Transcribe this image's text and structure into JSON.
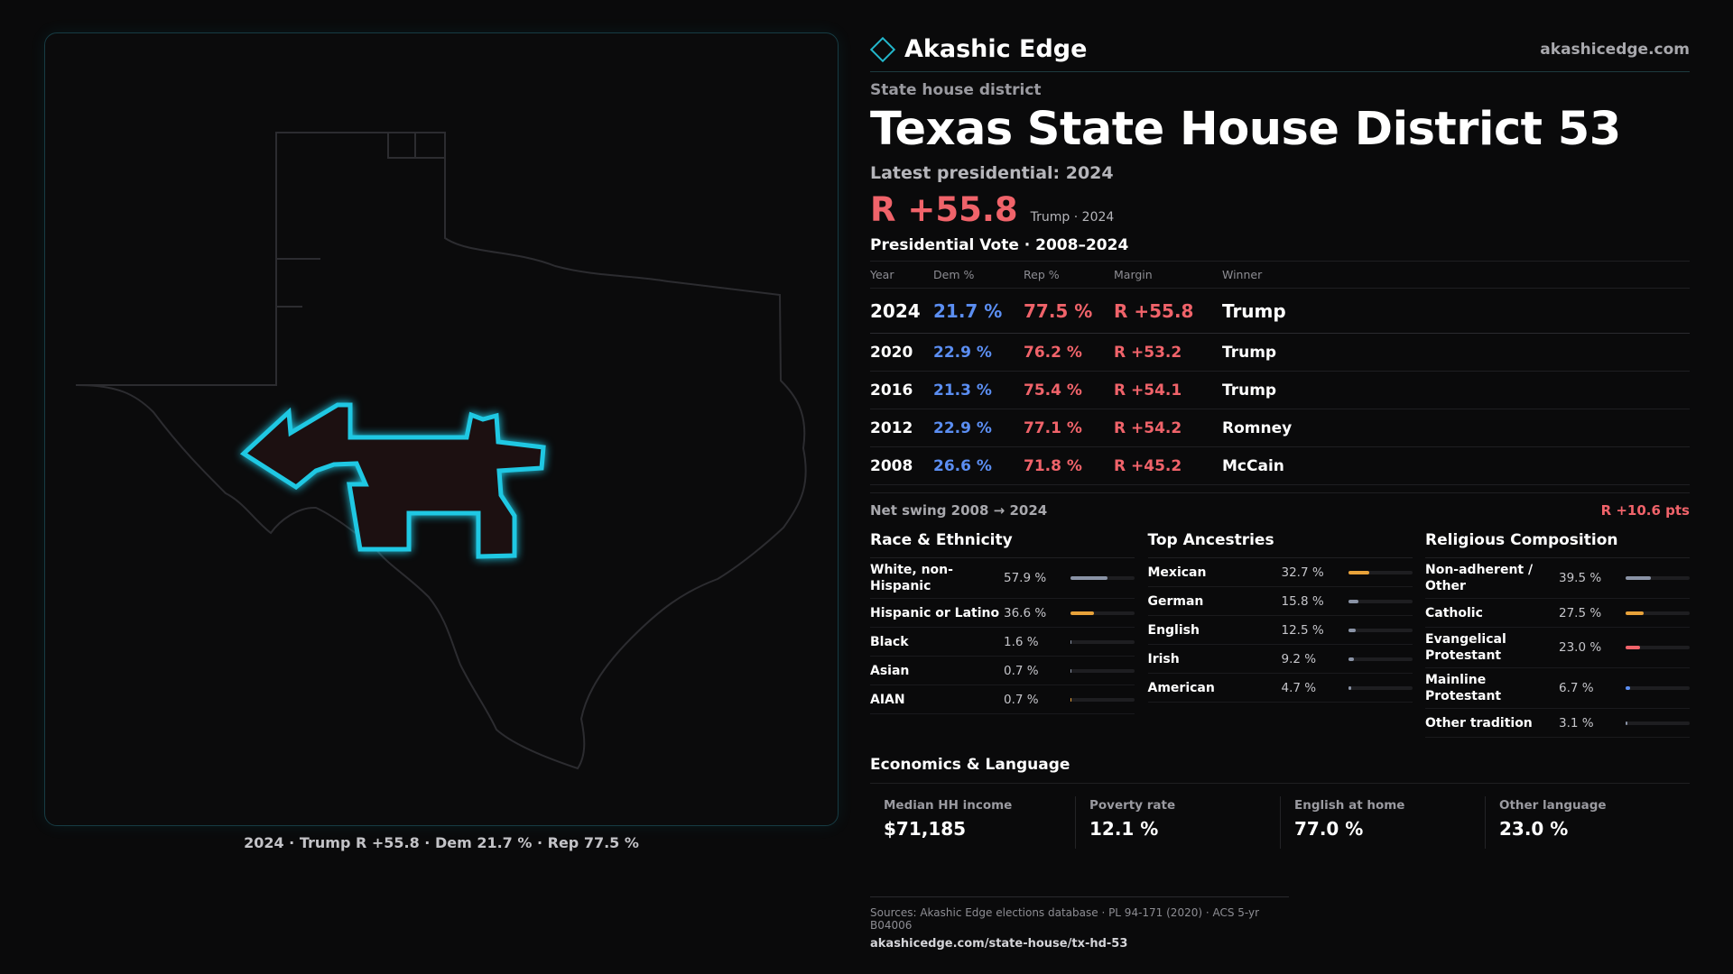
{
  "brand": {
    "name": "Akashic Edge",
    "url": "akashicedge.com",
    "accent": "#23b7cc"
  },
  "district": {
    "kind": "State house district",
    "state": "Texas",
    "name": "State House District 53",
    "latest_label": "Latest presidential: 2024",
    "margin": "R +55.8",
    "margin_sub": "Trump · 2024"
  },
  "votes": {
    "heading": "Presidential Vote · 2008–2024",
    "columns": [
      "Year",
      "Dem %",
      "Rep %",
      "Margin",
      "Winner"
    ],
    "rows": [
      {
        "year": "2024",
        "dem": "21.7 %",
        "rep": "77.5 %",
        "margin": "R +55.8",
        "winner": "Trump"
      },
      {
        "year": "2020",
        "dem": "22.9 %",
        "rep": "76.2 %",
        "margin": "R +53.2",
        "winner": "Trump"
      },
      {
        "year": "2016",
        "dem": "21.3 %",
        "rep": "75.4 %",
        "margin": "R +54.1",
        "winner": "Trump"
      },
      {
        "year": "2012",
        "dem": "22.9 %",
        "rep": "77.1 %",
        "margin": "R +54.2",
        "winner": "Romney"
      },
      {
        "year": "2008",
        "dem": "26.6 %",
        "rep": "71.8 %",
        "margin": "R +45.2",
        "winner": "McCain"
      }
    ],
    "swing_label": "Net swing 2008 → 2024",
    "swing_value": "R +10.6 pts"
  },
  "race": {
    "heading": "Race & Ethnicity",
    "items": [
      {
        "label": "White, non-Hispanic",
        "value": "57.9 %",
        "share": 0.579,
        "color": "#8a93a6"
      },
      {
        "label": "Hispanic or Latino",
        "value": "36.6 %",
        "share": 0.366,
        "color": "#e8a23a"
      },
      {
        "label": "Black",
        "value": "1.6 %",
        "share": 0.016,
        "color": "#8a93a6"
      },
      {
        "label": "Asian",
        "value": "0.7 %",
        "share": 0.007,
        "color": "#8a93a6"
      },
      {
        "label": "AIAN",
        "value": "0.7 %",
        "share": 0.007,
        "color": "#e8a23a"
      }
    ]
  },
  "ancestry": {
    "heading": "Top Ancestries",
    "items": [
      {
        "label": "Mexican",
        "value": "32.7 %",
        "share": 0.327,
        "color": "#e8a23a"
      },
      {
        "label": "German",
        "value": "15.8 %",
        "share": 0.158,
        "color": "#8a93a6"
      },
      {
        "label": "English",
        "value": "12.5 %",
        "share": 0.125,
        "color": "#8a93a6"
      },
      {
        "label": "Irish",
        "value": "9.2 %",
        "share": 0.092,
        "color": "#8a93a6"
      },
      {
        "label": "American",
        "value": "4.7 %",
        "share": 0.047,
        "color": "#8a93a6"
      }
    ]
  },
  "religion": {
    "heading": "Religious Composition",
    "items": [
      {
        "label": "Non-adherent / Other",
        "value": "39.5 %",
        "share": 0.395,
        "color": "#8a93a6"
      },
      {
        "label": "Catholic",
        "value": "27.5 %",
        "share": 0.275,
        "color": "#e8a23a"
      },
      {
        "label": "Evangelical Protestant",
        "value": "23.0 %",
        "share": 0.23,
        "color": "#f0636a"
      },
      {
        "label": "Mainline Protestant",
        "value": "6.7 %",
        "share": 0.067,
        "color": "#5b8ef2"
      },
      {
        "label": "Other tradition",
        "value": "3.1 %",
        "share": 0.031,
        "color": "#8a93a6"
      }
    ]
  },
  "economics": {
    "heading": "Economics & Language",
    "items": [
      {
        "label": "Median HH income",
        "value": "$71,185"
      },
      {
        "label": "Poverty rate",
        "value": "12.1 %"
      },
      {
        "label": "English at home",
        "value": "77.0 %"
      },
      {
        "label": "Other language",
        "value": "23.0 %"
      }
    ]
  },
  "map": {
    "caption": "2024 · Trump R +55.8 · Dem 21.7 % · Rep 77.5 %",
    "highlight_color": "#1fc8e3",
    "fill_color": "#1c1011",
    "outline_color": "#2c2c30"
  },
  "sources": {
    "line": "Sources: Akashic Edge elections database · PL 94-171 (2020) · ACS 5-yr B04006",
    "url": "akashicedge.com/state-house/tx-hd-53"
  }
}
